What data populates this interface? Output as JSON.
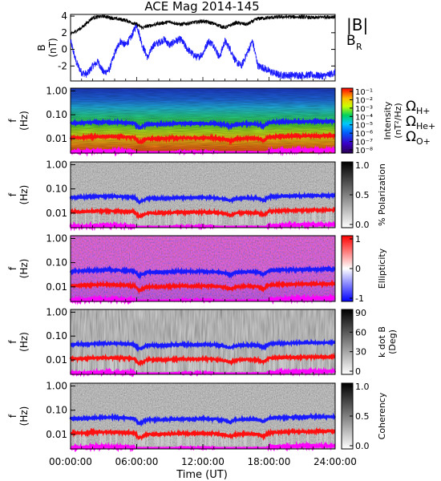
{
  "title": "ACE Mag 2014-145",
  "xlabel": "Time (UT)",
  "x_ticks": [
    "00:00:00",
    "06:00:00",
    "12:00:00",
    "18:00:00",
    "24:00:00"
  ],
  "colors": {
    "B_total": "#000000",
    "B_R": "#1a1aff",
    "H_plus": "#1a1aff",
    "He_plus": "#ff1010",
    "O_plus": "#ff00ff"
  },
  "legend": {
    "B_total": "|B|",
    "B_R": "B",
    "B_R_sub": "R",
    "omega": "Ω",
    "H_plus_sub": "H+",
    "He_plus_sub": "He+",
    "O_plus_sub": "O+"
  },
  "chart_data": [
    {
      "type": "line",
      "panel": "magnetic_field",
      "ylabel": "B",
      "yunit": "(nT)",
      "yticks": [
        "4",
        "2",
        "0",
        "-2"
      ],
      "ylim": [
        -3.8,
        4.2
      ],
      "xlim": [
        0,
        24
      ],
      "series": [
        {
          "name": "|B|",
          "x": [
            0,
            1,
            2,
            3,
            4,
            5,
            6,
            6.5,
            7,
            8,
            9,
            10,
            11,
            12,
            13,
            14,
            15,
            16,
            17,
            18,
            19,
            20,
            21,
            22,
            23,
            24
          ],
          "values": [
            1.8,
            2.6,
            3.8,
            4.0,
            3.7,
            3.5,
            3.0,
            2.6,
            2.8,
            3.1,
            3.3,
            3.0,
            3.2,
            3.4,
            3.1,
            2.6,
            3.2,
            3.0,
            3.7,
            3.8,
            3.9,
            3.9,
            3.9,
            3.8,
            3.9,
            3.9
          ]
        },
        {
          "name": "B_R",
          "x": [
            0,
            0.5,
            1,
            1.5,
            2,
            2.5,
            3,
            3.5,
            4,
            4.5,
            5,
            5.5,
            6,
            6.5,
            7,
            7.5,
            8,
            8.5,
            9,
            9.5,
            10,
            10.5,
            11,
            11.5,
            12,
            12.5,
            13,
            13.5,
            14,
            14.5,
            15,
            15.5,
            16,
            16.5,
            17,
            17.5,
            18,
            18.5,
            19,
            20,
            21,
            22,
            23,
            24
          ],
          "values": [
            1.0,
            -1.5,
            -2.8,
            -3.0,
            -2.0,
            -1.5,
            -2.8,
            -2.5,
            -0.5,
            1.0,
            0.5,
            1.5,
            3.0,
            0.5,
            -1.0,
            0.5,
            0.8,
            1.2,
            0.5,
            1.0,
            1.2,
            0.2,
            -0.5,
            -1.0,
            -0.5,
            1.0,
            0.5,
            -1.0,
            1.0,
            0.0,
            -1.5,
            -2.0,
            -0.5,
            1.0,
            -2.0,
            -2.2,
            -2.6,
            -2.9,
            -3.1,
            -3.1,
            -3.1,
            -3.1,
            -3.2,
            -2.8
          ]
        }
      ]
    },
    {
      "type": "heatmap",
      "panel": "intensity",
      "ylabel": "f",
      "yunit": "(Hz)",
      "yticks": [
        "1.00",
        "0.10",
        "0.01"
      ],
      "colorbar_label": "Intensity",
      "colorbar_unit": "(nT²/Hz)",
      "colorbar_ticks": [
        "10⁻¹",
        "10⁻²",
        "10⁻³",
        "10⁻⁴",
        "10⁻⁵",
        "10⁻⁶",
        "10⁻⁷",
        "10⁻⁸"
      ],
      "colorscale": "rainbow",
      "legend_entries": [
        "ΩH+",
        "ΩHe+",
        "ΩO+"
      ]
    },
    {
      "type": "heatmap",
      "panel": "polarization",
      "ylabel": "f",
      "yunit": "(Hz)",
      "yticks": [
        "1.00",
        "0.10",
        "0.01"
      ],
      "colorbar_label": "% Polarization",
      "colorbar_ticks": [
        "1.0",
        "0.5",
        "0.0"
      ],
      "colorscale": "grayscale"
    },
    {
      "type": "heatmap",
      "panel": "ellipticity",
      "ylabel": "f",
      "yunit": "(Hz)",
      "yticks": [
        "1.00",
        "0.10",
        "0.01"
      ],
      "colorbar_label": "Ellipticity",
      "colorbar_ticks": [
        "1",
        "0",
        "-1"
      ],
      "colorscale": "blue-white-red"
    },
    {
      "type": "heatmap",
      "panel": "k_dot_b",
      "ylabel": "f",
      "yunit": "(Hz)",
      "yticks": [
        "1.00",
        "0.10",
        "0.01"
      ],
      "colorbar_label": "k dot B",
      "colorbar_unit": "(Deg)",
      "colorbar_ticks": [
        "90",
        "60",
        "30",
        "0"
      ],
      "colorscale": "grayscale"
    },
    {
      "type": "heatmap",
      "panel": "coherency",
      "ylabel": "f",
      "yunit": "(Hz)",
      "yticks": [
        "1.00",
        "0.10",
        "0.01"
      ],
      "colorbar_label": "Coherency",
      "colorbar_ticks": [
        "1.0",
        "0.5",
        "0.0"
      ],
      "colorscale": "grayscale"
    }
  ],
  "gyrofrequency_lines": {
    "x": [
      0,
      1,
      2,
      3,
      4,
      5,
      5.8,
      6.2,
      7,
      8,
      9,
      10,
      11,
      12,
      13,
      14,
      14.5,
      15,
      16,
      17,
      17.5,
      18,
      19,
      20,
      21,
      22,
      23,
      24
    ],
    "H_plus_hz": [
      0.045,
      0.045,
      0.048,
      0.05,
      0.049,
      0.047,
      0.045,
      0.028,
      0.041,
      0.04,
      0.042,
      0.044,
      0.043,
      0.044,
      0.043,
      0.038,
      0.032,
      0.04,
      0.042,
      0.041,
      0.033,
      0.047,
      0.05,
      0.051,
      0.052,
      0.053,
      0.053,
      0.054
    ],
    "He_plus_hz": [
      0.0112,
      0.0113,
      0.012,
      0.0125,
      0.0122,
      0.0118,
      0.0112,
      0.007,
      0.0102,
      0.01,
      0.0105,
      0.011,
      0.0107,
      0.011,
      0.0108,
      0.0095,
      0.008,
      0.01,
      0.0105,
      0.0102,
      0.0083,
      0.0118,
      0.0125,
      0.0128,
      0.013,
      0.0132,
      0.0133,
      0.0135
    ],
    "O_plus_hz": [
      0.0028,
      0.0028,
      0.003,
      0.0031,
      0.003,
      0.003,
      0.0028,
      0.0018,
      0.0026,
      0.0025,
      0.0026,
      0.0027,
      0.0027,
      0.0027,
      0.0027,
      0.0024,
      0.002,
      0.0025,
      0.0026,
      0.0026,
      0.0021,
      0.003,
      0.0031,
      0.0032,
      0.0033,
      0.0033,
      0.0033,
      0.0034
    ]
  }
}
